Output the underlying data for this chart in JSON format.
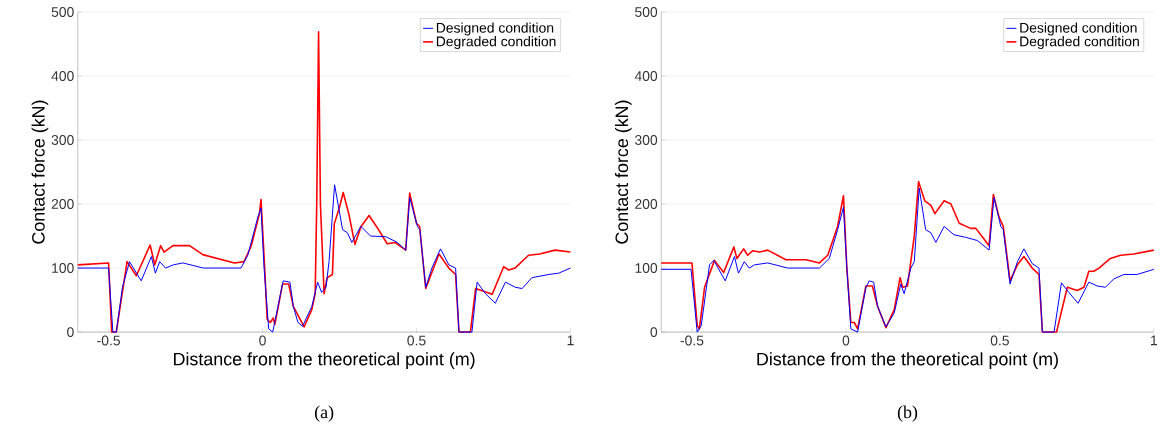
{
  "chart_data": [
    {
      "type": "line",
      "xlabel": "Distance from the theoretical point (m)",
      "ylabel": "Contact force (kN)",
      "annotations": [
        "(a)"
      ],
      "xlim": [
        -0.6,
        1
      ],
      "ylim": [
        0,
        500
      ],
      "xticks": [
        -0.5,
        0,
        0.5,
        1
      ],
      "yticks": [
        0,
        100,
        200,
        300,
        400,
        500
      ],
      "grid": "y",
      "legend": "top right",
      "series": [
        {
          "name": "Designed condition",
          "color": "#0000ff",
          "x": [
            -0.6,
            -0.5,
            -0.486,
            -0.475,
            -0.455,
            -0.432,
            -0.394,
            -0.361,
            -0.348,
            -0.334,
            -0.315,
            -0.29,
            -0.259,
            -0.192,
            -0.097,
            -0.07,
            -0.048,
            -0.015,
            -0.005,
            0.005,
            0.02,
            0.033,
            0.05,
            0.067,
            0.089,
            0.1,
            0.115,
            0.13,
            0.16,
            0.179,
            0.192,
            0.206,
            0.216,
            0.234,
            0.26,
            0.276,
            0.29,
            0.319,
            0.351,
            0.4,
            0.438,
            0.465,
            0.478,
            0.503,
            0.511,
            0.53,
            0.55,
            0.578,
            0.605,
            0.627,
            0.638,
            0.68,
            0.697,
            0.724,
            0.756,
            0.789,
            0.821,
            0.843,
            0.875,
            0.93,
            0.962,
            1.0
          ],
          "values": [
            100,
            100,
            0,
            0,
            70,
            110,
            80,
            118,
            92,
            110,
            100,
            105,
            108,
            100,
            100,
            100,
            120,
            180,
            194,
            100,
            5,
            0,
            40,
            80,
            78,
            40,
            15,
            9,
            40,
            78,
            62,
            70,
            110,
            230,
            160,
            155,
            140,
            165,
            150,
            149,
            140,
            128,
            210,
            165,
            160,
            70,
            100,
            130,
            105,
            100,
            0,
            0,
            78,
            60,
            45,
            78,
            70,
            68,
            85,
            90,
            92,
            100
          ]
        },
        {
          "name": "Degraded condition",
          "color": "#ff0000",
          "x": [
            -0.6,
            -0.5,
            -0.49,
            -0.475,
            -0.44,
            -0.41,
            -0.365,
            -0.35,
            -0.331,
            -0.32,
            -0.291,
            -0.237,
            -0.194,
            -0.091,
            -0.06,
            -0.037,
            -0.01,
            -0.005,
            0.007,
            0.015,
            0.025,
            0.035,
            0.04,
            0.065,
            0.085,
            0.1,
            0.135,
            0.16,
            0.171,
            0.176,
            0.182,
            0.188,
            0.2,
            0.21,
            0.227,
            0.233,
            0.25,
            0.262,
            0.28,
            0.3,
            0.32,
            0.346,
            0.37,
            0.405,
            0.43,
            0.465,
            0.478,
            0.5,
            0.51,
            0.53,
            0.573,
            0.605,
            0.627,
            0.638,
            0.675,
            0.692,
            0.746,
            0.783,
            0.8,
            0.82,
            0.864,
            0.9,
            0.95,
            1.0
          ],
          "values": [
            105,
            108,
            0,
            0,
            110,
            88,
            136,
            105,
            135,
            125,
            135,
            135,
            121,
            108,
            110,
            134,
            185,
            207,
            100,
            20,
            15,
            22,
            12,
            75,
            75,
            40,
            8,
            35,
            60,
            200,
            469,
            200,
            60,
            85,
            90,
            169,
            195,
            218,
            185,
            137,
            165,
            182,
            165,
            138,
            140,
            128,
            217,
            170,
            165,
            68,
            122,
            100,
            90,
            0,
            0,
            68,
            59,
            102,
            97,
            100,
            120,
            122,
            128,
            125
          ]
        }
      ]
    },
    {
      "type": "line",
      "xlabel": "Distance from the theoretical point (m)",
      "ylabel": "Contact force (kN)",
      "annotations": [
        "(b)"
      ],
      "xlim": [
        -0.6,
        1
      ],
      "ylim": [
        0,
        500
      ],
      "xticks": [
        -0.5,
        0,
        0.5,
        1
      ],
      "yticks": [
        0,
        100,
        200,
        300,
        400,
        500
      ],
      "grid": "y",
      "legend": "top right",
      "series": [
        {
          "name": "Designed condition",
          "color": "#0000ff",
          "x": [
            -0.6,
            -0.503,
            -0.483,
            -0.47,
            -0.443,
            -0.429,
            -0.392,
            -0.362,
            -0.349,
            -0.33,
            -0.314,
            -0.297,
            -0.254,
            -0.189,
            -0.086,
            -0.054,
            -0.027,
            -0.008,
            0.003,
            0.016,
            0.038,
            0.065,
            0.076,
            0.09,
            0.103,
            0.13,
            0.157,
            0.178,
            0.189,
            0.211,
            0.222,
            0.238,
            0.259,
            0.276,
            0.292,
            0.319,
            0.351,
            0.389,
            0.427,
            0.465,
            0.481,
            0.503,
            0.511,
            0.533,
            0.557,
            0.578,
            0.605,
            0.627,
            0.638,
            0.676,
            0.7,
            0.724,
            0.754,
            0.789,
            0.816,
            0.843,
            0.87,
            0.903,
            0.946,
            1.0
          ],
          "values": [
            98,
            98,
            0,
            10,
            105,
            112,
            80,
            118,
            92,
            110,
            100,
            105,
            108,
            100,
            100,
            115,
            160,
            195,
            100,
            5,
            0,
            70,
            80,
            78,
            40,
            8,
            30,
            75,
            60,
            100,
            110,
            225,
            160,
            155,
            140,
            165,
            152,
            148,
            143,
            128,
            210,
            165,
            160,
            75,
            110,
            130,
            107,
            100,
            0,
            0,
            77,
            62,
            45,
            78,
            72,
            70,
            83,
            90,
            90,
            98
          ]
        },
        {
          "name": "Degraded condition",
          "color": "#ff0000",
          "x": [
            -0.6,
            -0.5,
            -0.483,
            -0.476,
            -0.459,
            -0.427,
            -0.397,
            -0.364,
            -0.354,
            -0.332,
            -0.319,
            -0.303,
            -0.281,
            -0.254,
            -0.195,
            -0.13,
            -0.086,
            -0.059,
            -0.027,
            -0.008,
            0.003,
            0.016,
            0.027,
            0.038,
            0.065,
            0.086,
            0.103,
            0.13,
            0.157,
            0.176,
            0.184,
            0.2,
            0.222,
            0.236,
            0.256,
            0.276,
            0.289,
            0.319,
            0.341,
            0.368,
            0.405,
            0.422,
            0.449,
            0.465,
            0.479,
            0.497,
            0.511,
            0.533,
            0.557,
            0.578,
            0.605,
            0.627,
            0.638,
            0.684,
            0.719,
            0.751,
            0.773,
            0.789,
            0.805,
            0.822,
            0.859,
            0.892,
            0.935,
            1.0
          ],
          "values": [
            108,
            108,
            10,
            5,
            70,
            112,
            93,
            133,
            115,
            130,
            120,
            127,
            125,
            128,
            113,
            113,
            108,
            120,
            165,
            213,
            100,
            15,
            15,
            5,
            72,
            72,
            40,
            7,
            35,
            85,
            70,
            72,
            150,
            235,
            205,
            198,
            185,
            205,
            200,
            170,
            162,
            162,
            145,
            135,
            215,
            180,
            165,
            80,
            105,
            118,
            100,
            90,
            0,
            0,
            70,
            65,
            70,
            95,
            95,
            100,
            115,
            120,
            122,
            128
          ]
        }
      ]
    }
  ]
}
